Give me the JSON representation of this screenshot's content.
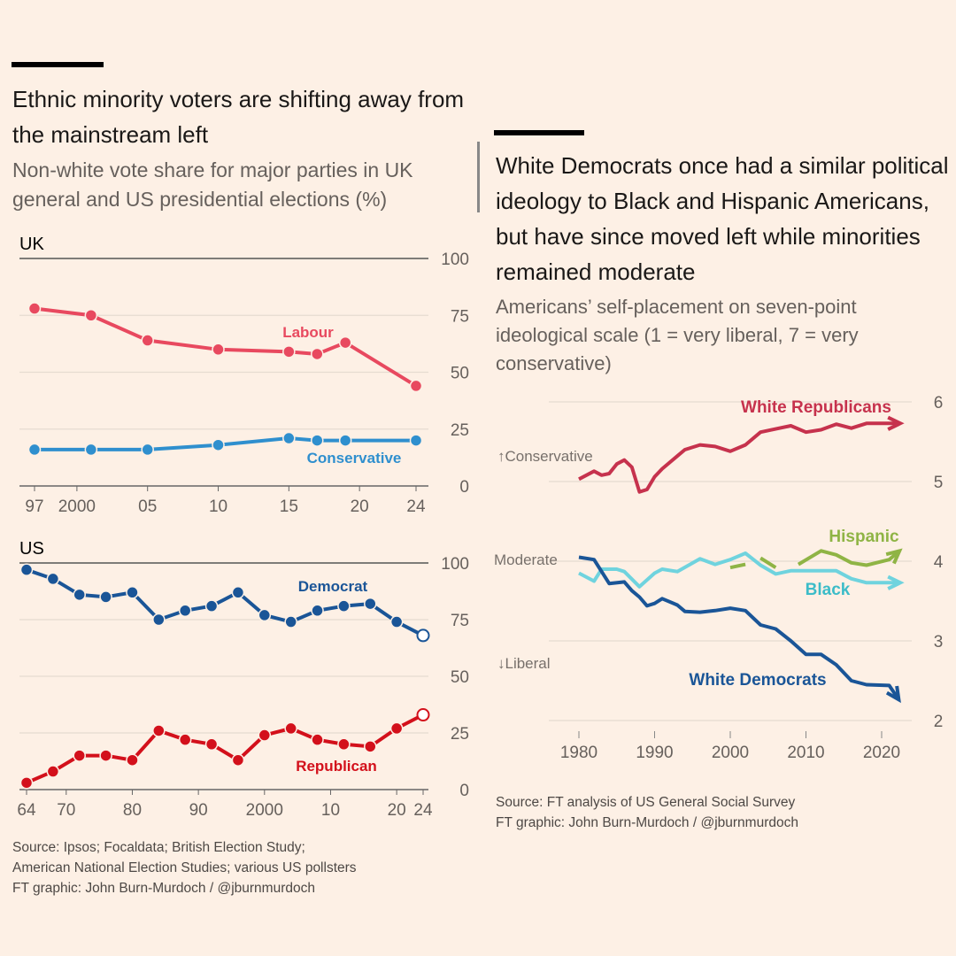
{
  "left": {
    "title": "Ethnic minority voters are shifting away from the mainstream left",
    "subtitle": "Non-white vote share for major parties in UK general and US presidential elections (%)",
    "source": [
      "Source: Ipsos; Focaldata; British Election Study;",
      "American National Election Studies; various US pollsters",
      "FT graphic: John Burn-Murdoch / @jburnmurdoch"
    ]
  },
  "right": {
    "title": "White Democrats once had a similar political ideology to Black and Hispanic Americans, but have since moved left while minorities remained moderate",
    "subtitle": "Americans’ self-placement on seven-point ideological scale (1 = very liberal, 7 = very conservative)",
    "source": [
      "Source: FT analysis of US General Social Survey",
      "FT graphic: John Burn-Murdoch / @jburnmurdoch"
    ]
  },
  "chart_data": [
    {
      "type": "line",
      "title": "UK",
      "ylim": [
        0,
        100
      ],
      "yticks": [
        0,
        25,
        50,
        75,
        100
      ],
      "xticks": [
        "97",
        "2000",
        "05",
        "10",
        "15",
        "20",
        "24"
      ],
      "xtick_values": [
        1997,
        2000,
        2005,
        2010,
        2015,
        2020,
        2024
      ],
      "x": [
        1997,
        2001,
        2005,
        2010,
        2015,
        2017,
        2019,
        2024
      ],
      "series": [
        {
          "name": "Labour",
          "color": "#e8495f",
          "values": [
            78,
            75,
            64,
            60,
            59,
            58,
            63,
            44
          ]
        },
        {
          "name": "Conservative",
          "color": "#2f8fce",
          "values": [
            16,
            16,
            16,
            18,
            21,
            20,
            20,
            20
          ]
        }
      ]
    },
    {
      "type": "line",
      "title": "US",
      "ylim": [
        0,
        100
      ],
      "yticks": [
        0,
        25,
        50,
        75,
        100
      ],
      "xticks": [
        "64",
        "70",
        "80",
        "90",
        "2000",
        "10",
        "20",
        "24"
      ],
      "xtick_values": [
        1964,
        1970,
        1980,
        1990,
        2000,
        2010,
        2020,
        2024
      ],
      "x": [
        1964,
        1968,
        1972,
        1976,
        1980,
        1984,
        1988,
        1992,
        1996,
        2000,
        2004,
        2008,
        2012,
        2016,
        2020,
        2024
      ],
      "series": [
        {
          "name": "Democrat",
          "color": "#1a5597",
          "values": [
            97,
            93,
            86,
            85,
            87,
            75,
            79,
            81,
            87,
            77,
            74,
            79,
            81,
            82,
            74,
            68
          ]
        },
        {
          "name": "Republican",
          "color": "#d3101b",
          "values": [
            3,
            8,
            15,
            15,
            13,
            26,
            22,
            20,
            13,
            24,
            27,
            22,
            20,
            19,
            27,
            33
          ]
        }
      ]
    },
    {
      "type": "line",
      "ylim": [
        2,
        6
      ],
      "yticks": [
        2,
        3,
        4,
        5,
        6
      ],
      "xticks": [
        "1980",
        "1990",
        "2000",
        "2010",
        "2020"
      ],
      "xtick_values": [
        1980,
        1990,
        2000,
        2010,
        2020
      ],
      "axis_annotations": {
        "conservative": "Conservative",
        "moderate": "Moderate",
        "liberal": "Liberal"
      },
      "series": [
        {
          "name": "White Republicans",
          "color": "#c6324d",
          "points": [
            [
              1980,
              5.03
            ],
            [
              1982,
              5.13
            ],
            [
              1983,
              5.08
            ],
            [
              1984,
              5.1
            ],
            [
              1985,
              5.22
            ],
            [
              1986,
              5.27
            ],
            [
              1987,
              5.18
            ],
            [
              1988,
              4.87
            ],
            [
              1989,
              4.9
            ],
            [
              1990,
              5.06
            ],
            [
              1991,
              5.16
            ],
            [
              1993,
              5.32
            ],
            [
              1994,
              5.4
            ],
            [
              1996,
              5.46
            ],
            [
              1998,
              5.44
            ],
            [
              2000,
              5.38
            ],
            [
              2002,
              5.46
            ],
            [
              2004,
              5.62
            ],
            [
              2006,
              5.66
            ],
            [
              2008,
              5.7
            ],
            [
              2010,
              5.62
            ],
            [
              2012,
              5.65
            ],
            [
              2014,
              5.72
            ],
            [
              2016,
              5.67
            ],
            [
              2018,
              5.73
            ],
            [
              2022,
              5.73
            ]
          ]
        },
        {
          "name": "Hispanic",
          "color": "#8fb445",
          "points": [
            [
              2000,
              3.92
            ],
            [
              2002,
              3.96
            ],
            null,
            [
              2004,
              4.04
            ],
            [
              2006,
              3.92
            ],
            null,
            [
              2009,
              3.96
            ],
            [
              2012,
              4.13
            ],
            [
              2014,
              4.08
            ],
            [
              2016,
              3.98
            ],
            [
              2018,
              3.95
            ],
            [
              2021,
              4.02
            ],
            [
              2022,
              4.1
            ]
          ]
        },
        {
          "name": "Black",
          "color": "#6fd3de",
          "points": [
            [
              1980,
              3.85
            ],
            [
              1982,
              3.75
            ],
            [
              1983,
              3.9
            ],
            [
              1985,
              3.9
            ],
            [
              1986,
              3.87
            ],
            [
              1988,
              3.68
            ],
            [
              1990,
              3.85
            ],
            [
              1991,
              3.9
            ],
            [
              1993,
              3.87
            ],
            [
              1996,
              4.03
            ],
            [
              1998,
              3.96
            ],
            [
              2000,
              4.02
            ],
            [
              2002,
              4.1
            ],
            [
              2004,
              3.95
            ],
            [
              2006,
              3.84
            ],
            [
              2008,
              3.88
            ],
            [
              2014,
              3.88
            ],
            [
              2016,
              3.78
            ],
            [
              2018,
              3.73
            ],
            [
              2022,
              3.73
            ]
          ]
        },
        {
          "name": "White Democrats",
          "color": "#1a5597",
          "points": [
            [
              1980,
              4.05
            ],
            [
              1982,
              4.02
            ],
            [
              1984,
              3.72
            ],
            [
              1986,
              3.74
            ],
            [
              1987,
              3.63
            ],
            [
              1988,
              3.55
            ],
            [
              1989,
              3.44
            ],
            [
              1990,
              3.47
            ],
            [
              1991,
              3.53
            ],
            [
              1993,
              3.45
            ],
            [
              1994,
              3.37
            ],
            [
              1996,
              3.36
            ],
            [
              1998,
              3.38
            ],
            [
              2000,
              3.41
            ],
            [
              2002,
              3.38
            ],
            [
              2004,
              3.2
            ],
            [
              2006,
              3.15
            ],
            [
              2008,
              3.0
            ],
            [
              2010,
              2.83
            ],
            [
              2012,
              2.83
            ],
            [
              2014,
              2.7
            ],
            [
              2016,
              2.5
            ],
            [
              2018,
              2.45
            ],
            [
              2021,
              2.44
            ],
            [
              2022,
              2.3
            ]
          ]
        }
      ]
    }
  ]
}
